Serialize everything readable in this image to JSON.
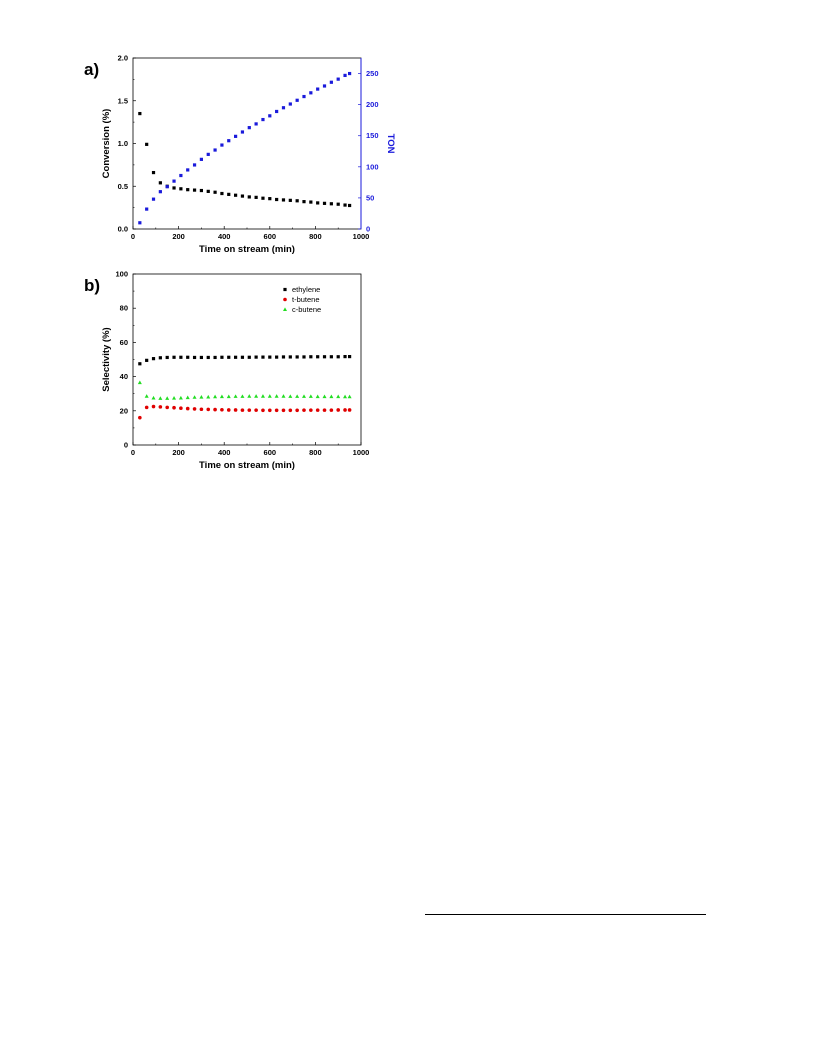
{
  "colors": {
    "black": "#000000",
    "blue": "#1a1adb",
    "red": "#e00000",
    "green": "#22dd22"
  },
  "chart_data": [
    {
      "panel_label": "a)",
      "type": "scatter",
      "xlabel": "Time on stream (min)",
      "ylabel": "Conversion (%)",
      "y2label": "TON",
      "xlim": [
        0,
        1000
      ],
      "ylim": [
        0,
        2.0
      ],
      "y2lim": [
        0,
        275
      ],
      "xticks": [
        "0",
        "200",
        "400",
        "600",
        "800",
        "1000"
      ],
      "yticks": [
        "0.0",
        "0.5",
        "1.0",
        "1.5",
        "2.0"
      ],
      "y2ticks": [
        "0",
        "50",
        "100",
        "150",
        "200",
        "250"
      ],
      "grid": false,
      "series": [
        {
          "axis": "left",
          "marker": "square",
          "color": "#000000",
          "x": [
            30,
            60,
            90,
            120,
            150,
            180,
            210,
            240,
            270,
            300,
            330,
            360,
            390,
            420,
            450,
            480,
            510,
            540,
            570,
            600,
            630,
            660,
            690,
            720,
            750,
            780,
            810,
            840,
            870,
            900,
            930,
            950
          ],
          "y": [
            1.35,
            0.99,
            0.66,
            0.54,
            0.5,
            0.48,
            0.47,
            0.46,
            0.455,
            0.45,
            0.44,
            0.43,
            0.415,
            0.405,
            0.395,
            0.385,
            0.375,
            0.37,
            0.36,
            0.355,
            0.345,
            0.34,
            0.335,
            0.33,
            0.32,
            0.315,
            0.305,
            0.3,
            0.295,
            0.29,
            0.28,
            0.275
          ]
        },
        {
          "axis": "right",
          "marker": "square",
          "color": "#1a1adb",
          "x": [
            30,
            60,
            90,
            120,
            150,
            180,
            210,
            240,
            270,
            300,
            330,
            360,
            390,
            420,
            450,
            480,
            510,
            540,
            570,
            600,
            630,
            660,
            690,
            720,
            750,
            780,
            810,
            840,
            870,
            900,
            930,
            950
          ],
          "y": [
            10,
            32,
            48,
            60,
            68,
            77,
            86,
            95,
            103,
            112,
            120,
            127,
            135,
            142,
            149,
            156,
            163,
            169,
            176,
            182,
            189,
            195,
            201,
            207,
            213,
            219,
            225,
            230,
            236,
            241,
            247,
            250
          ]
        }
      ]
    },
    {
      "panel_label": "b)",
      "type": "scatter",
      "xlabel": "Time on stream (min)",
      "ylabel": "Selectivity (%)",
      "xlim": [
        0,
        1000
      ],
      "ylim": [
        0,
        100
      ],
      "xticks": [
        "0",
        "200",
        "400",
        "600",
        "800",
        "1000"
      ],
      "yticks": [
        "0",
        "20",
        "40",
        "60",
        "80",
        "100"
      ],
      "grid": false,
      "legend_position": "top-right",
      "series": [
        {
          "name": "ethylene",
          "marker": "square",
          "color": "#000000",
          "x": [
            30,
            60,
            90,
            120,
            150,
            180,
            210,
            240,
            270,
            300,
            330,
            360,
            390,
            420,
            450,
            480,
            510,
            540,
            570,
            600,
            630,
            660,
            690,
            720,
            750,
            780,
            810,
            840,
            870,
            900,
            930,
            950
          ],
          "y": [
            47.5,
            49.5,
            50.5,
            51,
            51.2,
            51.3,
            51.3,
            51.3,
            51.2,
            51.2,
            51.2,
            51.2,
            51.3,
            51.3,
            51.3,
            51.3,
            51.3,
            51.4,
            51.4,
            51.4,
            51.4,
            51.5,
            51.5,
            51.5,
            51.5,
            51.6,
            51.6,
            51.6,
            51.6,
            51.6,
            51.7,
            51.7
          ]
        },
        {
          "name": "t-butene",
          "marker": "circle",
          "color": "#e00000",
          "x": [
            30,
            60,
            90,
            120,
            150,
            180,
            210,
            240,
            270,
            300,
            330,
            360,
            390,
            420,
            450,
            480,
            510,
            540,
            570,
            600,
            630,
            660,
            690,
            720,
            750,
            780,
            810,
            840,
            870,
            900,
            930,
            950
          ],
          "y": [
            16,
            22,
            22.5,
            22.3,
            22,
            21.8,
            21.5,
            21.3,
            21.1,
            20.9,
            20.8,
            20.7,
            20.6,
            20.5,
            20.5,
            20.4,
            20.4,
            20.4,
            20.3,
            20.3,
            20.3,
            20.3,
            20.3,
            20.3,
            20.4,
            20.4,
            20.4,
            20.4,
            20.4,
            20.5,
            20.5,
            20.5
          ]
        },
        {
          "name": "c-butene",
          "marker": "triangle",
          "color": "#22dd22",
          "x": [
            30,
            60,
            90,
            120,
            150,
            180,
            210,
            240,
            270,
            300,
            330,
            360,
            390,
            420,
            450,
            480,
            510,
            540,
            570,
            600,
            630,
            660,
            690,
            720,
            750,
            780,
            810,
            840,
            870,
            900,
            930,
            950
          ],
          "y": [
            36.5,
            28.5,
            27.5,
            27.3,
            27.3,
            27.4,
            27.5,
            27.7,
            27.9,
            28,
            28.1,
            28.2,
            28.3,
            28.3,
            28.4,
            28.4,
            28.5,
            28.5,
            28.5,
            28.5,
            28.5,
            28.5,
            28.4,
            28.4,
            28.4,
            28.4,
            28.3,
            28.3,
            28.3,
            28.3,
            28.2,
            28.2
          ]
        }
      ]
    }
  ]
}
